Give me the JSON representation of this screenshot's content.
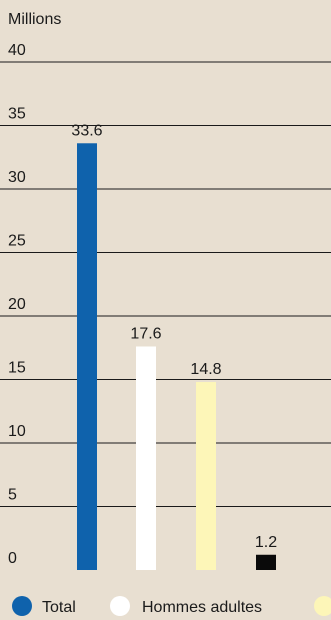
{
  "chart_data": {
    "type": "bar",
    "ylabel": "Millions",
    "ylim": [
      0,
      40
    ],
    "yticks": [
      "0",
      "5",
      "10",
      "15",
      "20",
      "25",
      "30",
      "35",
      "40"
    ],
    "grid": true,
    "legend_position": "bottom",
    "series": [
      {
        "name": "Total",
        "value": 33.6,
        "label": "33.6",
        "color": "#0f62ac",
        "stroke": ""
      },
      {
        "name": "Hommes adultes",
        "value": 17.6,
        "label": "17.6",
        "color": "#ffffff",
        "stroke": ""
      },
      {
        "name": "",
        "value": 14.8,
        "label": "14.8",
        "color": "#fdf6b8",
        "stroke": ""
      },
      {
        "name": "",
        "value": 1.2,
        "label": "1.2",
        "color": "#0a0a0a",
        "stroke": ""
      }
    ]
  }
}
